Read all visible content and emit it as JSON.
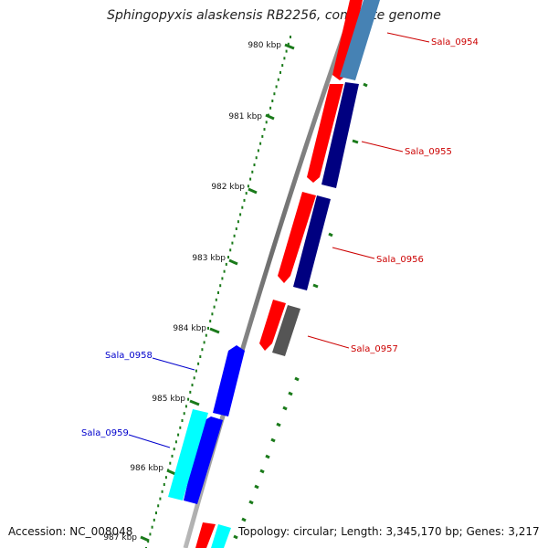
{
  "title": "Sphingopyxis alaskensis RB2256, complete genome",
  "footer": {
    "accession": "Accession: NC_008048",
    "topology": "Topology: circular; Length: 3,345,170 bp; Genes: 3,217"
  },
  "ticks": [
    {
      "label": "980 kbp"
    },
    {
      "label": "981 kbp"
    },
    {
      "label": "982 kbp"
    },
    {
      "label": "983 kbp"
    },
    {
      "label": "984 kbp"
    },
    {
      "label": "985 kbp"
    },
    {
      "label": "986 kbp"
    },
    {
      "label": "987 kbp"
    }
  ],
  "gene_labels": [
    {
      "name": "Sala_0954",
      "color": "#cc0000"
    },
    {
      "name": "Sala_0955",
      "color": "#cc0000"
    },
    {
      "name": "Sala_0956",
      "color": "#cc0000"
    },
    {
      "name": "Sala_0957",
      "color": "#cc0000"
    },
    {
      "name": "Sala_0958",
      "color": "#0000cc"
    },
    {
      "name": "Sala_0959",
      "color": "#0000cc"
    }
  ],
  "colors": {
    "backbone": "#8a8a8a",
    "tick": "#1a7a1a",
    "cds_forward": "#ff0000",
    "cds_reverse": "#0000ff",
    "feature_dark": "#000080",
    "feature_light": "#00ffff",
    "feature_steel": "#4682b4",
    "feature_gray": "#555555"
  }
}
